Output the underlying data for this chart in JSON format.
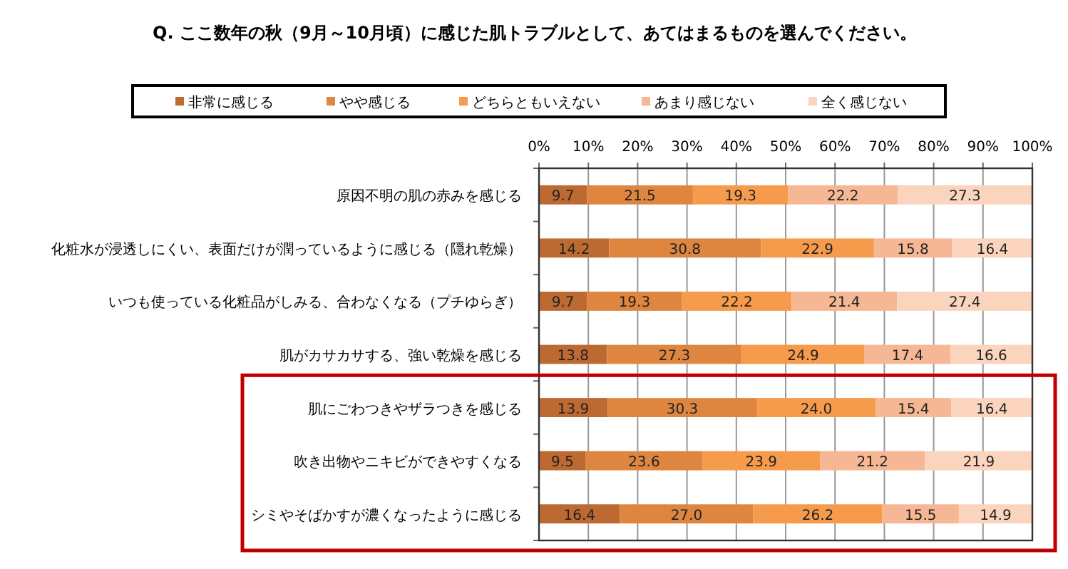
{
  "chart_data": {
    "type": "bar",
    "orientation": "horizontal",
    "stacked": true,
    "title": "Q. ここ数年の秋（9月～10月頃）に感じた肌トラブルとして、あてはまるものを選んでください。",
    "categories": [
      "原因不明の肌の赤みを感じる",
      "化粧水が浸透しにくい、表面だけが潤っているように感じる（隠れ乾燥）",
      "いつも使っている化粧品がしみる、合わなくなる（プチゆらぎ）",
      "肌がカサカサする、強い乾燥を感じる",
      "肌にごわつきやザラつきを感じる",
      "吹き出物やニキビができやすくなる",
      "シミやそばかすが濃くなったように感じる"
    ],
    "series": [
      {
        "name": "非常に感じる",
        "color": "#bd6a32",
        "values": [
          9.7,
          14.2,
          9.7,
          13.8,
          13.9,
          9.5,
          16.4
        ],
        "value_labels": [
          "9.7",
          "14.2",
          "9.7",
          "13.8",
          "13.9",
          "9.5",
          "16.4"
        ]
      },
      {
        "name": "やや感じる",
        "color": "#de8640",
        "values": [
          21.5,
          30.8,
          19.3,
          27.3,
          30.3,
          23.6,
          27.0
        ],
        "value_labels": [
          "21.5",
          "30.8",
          "19.3",
          "27.3",
          "30.3",
          "23.6",
          "27.0"
        ]
      },
      {
        "name": "どちらともいえない",
        "color": "#f69a4c",
        "values": [
          19.3,
          22.9,
          22.2,
          24.9,
          24.0,
          23.9,
          26.2
        ],
        "value_labels": [
          "19.3",
          "22.9",
          "22.2",
          "24.9",
          "24.0",
          "23.9",
          "26.2"
        ]
      },
      {
        "name": "あまり感じない",
        "color": "#f6b794",
        "values": [
          22.2,
          15.8,
          21.4,
          17.4,
          15.4,
          21.2,
          15.5
        ],
        "value_labels": [
          "22.2",
          "15.8",
          "21.4",
          "17.4",
          "15.4",
          "21.2",
          "15.5"
        ]
      },
      {
        "name": "全く感じない",
        "color": "#fbd4bd",
        "values": [
          27.3,
          16.4,
          27.4,
          16.6,
          16.4,
          21.9,
          14.9
        ],
        "value_labels": [
          "27.3",
          "16.4",
          "27.4",
          "16.6",
          "16.4",
          "21.9",
          "14.9"
        ]
      }
    ],
    "xlim": [
      0,
      100
    ],
    "xticks": [
      {
        "value": 0,
        "label": "0%"
      },
      {
        "value": 10,
        "label": "10%"
      },
      {
        "value": 20,
        "label": "20%"
      },
      {
        "value": 30,
        "label": "30%"
      },
      {
        "value": 40,
        "label": "40%"
      },
      {
        "value": 50,
        "label": "50%"
      },
      {
        "value": 60,
        "label": "60%"
      },
      {
        "value": 70,
        "label": "70%"
      },
      {
        "value": 80,
        "label": "80%"
      },
      {
        "value": 90,
        "label": "90%"
      },
      {
        "value": 100,
        "label": "100%"
      }
    ],
    "grid": "x",
    "legend": "top"
  }
}
